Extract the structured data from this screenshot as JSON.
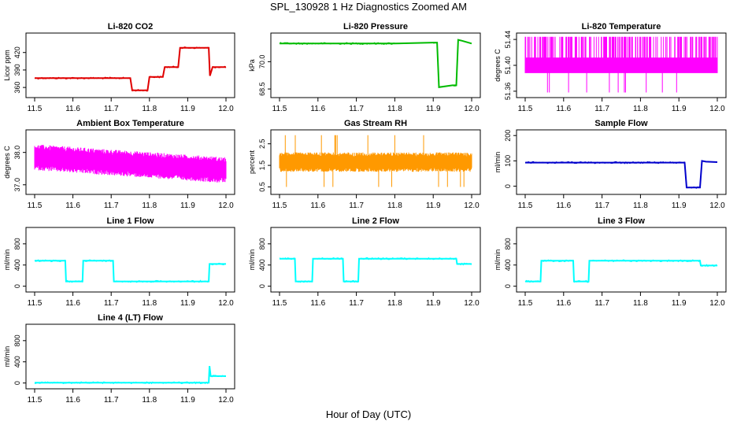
{
  "page": {
    "title": "SPL_130928  1 Hz Diagnostics Zoomed AM",
    "xlabel": "Hour of Day (UTC)"
  },
  "chart_data": [
    {
      "type": "line",
      "title": "Li-820 CO2",
      "ylabel": "Licor ppm",
      "color": "#e00000",
      "xlim": [
        11.5,
        12.0
      ],
      "ylim": [
        348,
        448
      ],
      "xticks": [
        "11.5",
        "11.6",
        "11.7",
        "11.8",
        "11.9",
        "12.0"
      ],
      "yticks": [
        {
          "v": 360,
          "label": "360"
        },
        {
          "v": 390,
          "label": "390"
        },
        {
          "v": 420,
          "label": "420"
        }
      ],
      "series": [
        {
          "style": "step",
          "points": [
            [
              11.5,
              376
            ],
            [
              11.75,
              376
            ],
            [
              11.755,
              355
            ],
            [
              11.795,
              355
            ],
            [
              11.8,
              378
            ],
            [
              11.835,
              378
            ],
            [
              11.84,
              395
            ],
            [
              11.875,
              395
            ],
            [
              11.88,
              428
            ],
            [
              11.955,
              428
            ],
            [
              11.958,
              380
            ],
            [
              11.965,
              395
            ],
            [
              12.0,
              395
            ]
          ]
        }
      ]
    },
    {
      "type": "line",
      "title": "Li-820 Pressure",
      "ylabel": "kPa",
      "color": "#00bb00",
      "xlim": [
        11.5,
        12.0
      ],
      "ylim": [
        68.2,
        71.4
      ],
      "xticks": [
        "11.5",
        "11.6",
        "11.7",
        "11.8",
        "11.9",
        "12.0"
      ],
      "yticks": [
        {
          "v": 68.5,
          "label": "68.5"
        },
        {
          "v": 70.0,
          "label": "70.0"
        }
      ],
      "series": [
        {
          "style": "line",
          "points": [
            [
              11.5,
              71.0
            ],
            [
              11.8,
              71.0
            ],
            [
              11.9,
              71.05
            ],
            [
              11.91,
              71.05
            ],
            [
              11.915,
              68.6
            ],
            [
              11.95,
              68.7
            ],
            [
              11.96,
              68.7
            ],
            [
              11.965,
              71.2
            ],
            [
              11.975,
              71.15
            ],
            [
              12.0,
              71.0
            ]
          ]
        }
      ]
    },
    {
      "type": "line",
      "title": "Li-820 Temperature",
      "ylabel": "degrees C",
      "color": "#ff00ff",
      "xlim": [
        11.5,
        12.0
      ],
      "ylim": [
        51.355,
        51.445
      ],
      "xticks": [
        "11.5",
        "11.6",
        "11.7",
        "11.8",
        "11.9",
        "12.0"
      ],
      "yticks": [
        {
          "v": 51.36,
          "label": "51.36"
        },
        {
          "v": 51.4,
          "label": "51.40"
        },
        {
          "v": 51.44,
          "label": "51.44"
        }
      ],
      "series": [
        {
          "style": "band",
          "noise": {
            "base": 51.395,
            "lo": 51.388,
            "hi": 51.412,
            "spike_hi": 51.444,
            "spike_lo": 51.358,
            "spike_hi_prob": 0.3,
            "spike_lo_prob": 0.02,
            "n": 500
          }
        }
      ]
    },
    {
      "type": "line",
      "title": "Ambient Box Temperature",
      "ylabel": "degrees C",
      "color": "#ff00ff",
      "xlim": [
        11.5,
        12.0
      ],
      "ylim": [
        36.8,
        38.6
      ],
      "xticks": [
        "11.5",
        "11.6",
        "11.7",
        "11.8",
        "11.9",
        "12.0"
      ],
      "yticks": [
        {
          "v": 37.0,
          "label": "37.0"
        },
        {
          "v": 38.0,
          "label": "38.0"
        }
      ],
      "series": [
        {
          "style": "band",
          "noise": {
            "base_start": 37.85,
            "base_end": 37.45,
            "lo": -0.4,
            "hi": 0.4,
            "n": 500
          }
        }
      ]
    },
    {
      "type": "line",
      "title": "Gas Stream RH",
      "ylabel": "percent",
      "color": "#ff9900",
      "xlim": [
        11.5,
        12.0
      ],
      "ylim": [
        0.3,
        3.0
      ],
      "xticks": [
        "11.5",
        "11.6",
        "11.7",
        "11.8",
        "11.9",
        "12.0"
      ],
      "yticks": [
        {
          "v": 0.5,
          "label": "0.5"
        },
        {
          "v": 1.5,
          "label": "1.5"
        },
        {
          "v": 2.5,
          "label": "2.5"
        }
      ],
      "series": [
        {
          "style": "band",
          "noise": {
            "base_start": 1.65,
            "base_end": 1.65,
            "lo": -0.45,
            "hi": 0.45,
            "spike_hi": 2.9,
            "spike_lo": 0.5,
            "spike_hi_prob": 0.01,
            "spike_lo_prob": 0.02,
            "n": 500
          }
        }
      ]
    },
    {
      "type": "line",
      "title": "Sample Flow",
      "ylabel": "ml/min",
      "color": "#0000cc",
      "xlim": [
        11.5,
        12.0
      ],
      "ylim": [
        -20,
        210
      ],
      "xticks": [
        "11.5",
        "11.6",
        "11.7",
        "11.8",
        "11.9",
        "12.0"
      ],
      "yticks": [
        {
          "v": 0,
          "label": "0"
        },
        {
          "v": 100,
          "label": "100"
        },
        {
          "v": 200,
          "label": "200"
        }
      ],
      "series": [
        {
          "style": "step",
          "points": [
            [
              11.5,
              93
            ],
            [
              11.915,
              93
            ],
            [
              11.92,
              -5
            ],
            [
              11.955,
              -5
            ],
            [
              11.96,
              100
            ],
            [
              11.97,
              97
            ],
            [
              12.0,
              95
            ]
          ]
        }
      ]
    },
    {
      "type": "line",
      "title": "Line 1 Flow",
      "ylabel": "ml/min",
      "color": "#00ffff",
      "xlim": [
        11.5,
        12.0
      ],
      "ylim": [
        -50,
        1050
      ],
      "xticks": [
        "11.5",
        "11.6",
        "11.7",
        "11.8",
        "11.9",
        "12.0"
      ],
      "yticks": [
        {
          "v": 0,
          "label": "0"
        },
        {
          "v": 400,
          "label": "400"
        },
        {
          "v": 800,
          "label": "800"
        }
      ],
      "series": [
        {
          "style": "step",
          "points": [
            [
              11.5,
              480
            ],
            [
              11.58,
              480
            ],
            [
              11.582,
              90
            ],
            [
              11.625,
              90
            ],
            [
              11.627,
              480
            ],
            [
              11.705,
              480
            ],
            [
              11.707,
              90
            ],
            [
              11.955,
              90
            ],
            [
              11.957,
              420
            ],
            [
              12.0,
              420
            ]
          ]
        }
      ]
    },
    {
      "type": "line",
      "title": "Line 2 Flow",
      "ylabel": "ml/min",
      "color": "#00ffff",
      "xlim": [
        11.5,
        12.0
      ],
      "ylim": [
        -50,
        1050
      ],
      "xticks": [
        "11.5",
        "11.6",
        "11.7",
        "11.8",
        "11.9",
        "12.0"
      ],
      "yticks": [
        {
          "v": 0,
          "label": "0"
        },
        {
          "v": 400,
          "label": "400"
        },
        {
          "v": 800,
          "label": "800"
        }
      ],
      "series": [
        {
          "style": "step",
          "points": [
            [
              11.5,
              520
            ],
            [
              11.54,
              520
            ],
            [
              11.542,
              90
            ],
            [
              11.585,
              90
            ],
            [
              11.587,
              520
            ],
            [
              11.665,
              520
            ],
            [
              11.667,
              90
            ],
            [
              11.705,
              90
            ],
            [
              11.707,
              520
            ],
            [
              11.96,
              520
            ],
            [
              11.962,
              420
            ],
            [
              12.0,
              420
            ]
          ]
        }
      ]
    },
    {
      "type": "line",
      "title": "Line 3 Flow",
      "ylabel": "ml/min",
      "color": "#00ffff",
      "xlim": [
        11.5,
        12.0
      ],
      "ylim": [
        -50,
        1050
      ],
      "xticks": [
        "11.5",
        "11.6",
        "11.7",
        "11.8",
        "11.9",
        "12.0"
      ],
      "yticks": [
        {
          "v": 0,
          "label": "0"
        },
        {
          "v": 400,
          "label": "400"
        },
        {
          "v": 800,
          "label": "800"
        }
      ],
      "series": [
        {
          "style": "step",
          "points": [
            [
              11.5,
              90
            ],
            [
              11.54,
              90
            ],
            [
              11.542,
              480
            ],
            [
              11.625,
              480
            ],
            [
              11.627,
              90
            ],
            [
              11.665,
              90
            ],
            [
              11.667,
              480
            ],
            [
              11.955,
              480
            ],
            [
              11.957,
              390
            ],
            [
              12.0,
              390
            ]
          ]
        }
      ]
    },
    {
      "type": "line",
      "title": "Line 4 (LT) Flow",
      "ylabel": "ml/min",
      "color": "#00ffff",
      "xlim": [
        11.5,
        12.0
      ],
      "ylim": [
        -50,
        1050
      ],
      "xticks": [
        "11.5",
        "11.6",
        "11.7",
        "11.8",
        "11.9",
        "12.0"
      ],
      "yticks": [
        {
          "v": 0,
          "label": "0"
        },
        {
          "v": 400,
          "label": "400"
        },
        {
          "v": 800,
          "label": "800"
        }
      ],
      "series": [
        {
          "style": "step",
          "points": [
            [
              11.5,
              5
            ],
            [
              11.955,
              5
            ],
            [
              11.957,
              320
            ],
            [
              11.96,
              130
            ],
            [
              12.0,
              130
            ]
          ]
        }
      ]
    }
  ]
}
